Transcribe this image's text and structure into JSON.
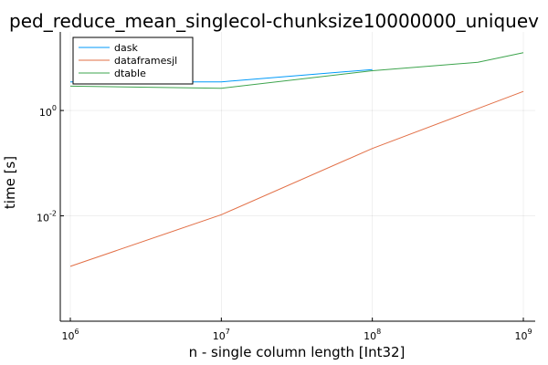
{
  "chart_data": {
    "type": "line",
    "title": "ped_reduce_mean_singlecol-chunksize10000000_uniquev",
    "xlabel": "n - single column length [Int32]",
    "ylabel": "time [s]",
    "xscale": "log",
    "yscale": "log",
    "xlim": [
      1000000,
      1000000000
    ],
    "ylim": [
      0.0001,
      31
    ],
    "grid": true,
    "legend_position": "top-left",
    "x_ticks": [
      {
        "value": 1000000,
        "base": "10",
        "exp": "6"
      },
      {
        "value": 10000000,
        "base": "10",
        "exp": "7"
      },
      {
        "value": 100000000,
        "base": "10",
        "exp": "8"
      },
      {
        "value": 1000000000,
        "base": "10",
        "exp": "9"
      }
    ],
    "y_ticks": [
      {
        "value": 0.01,
        "base": "10",
        "exp": "-2"
      },
      {
        "value": 1,
        "base": "10",
        "exp": "0"
      }
    ],
    "series": [
      {
        "name": "dask",
        "color": "#009af9",
        "x": [
          1000000,
          10000000,
          100000000
        ],
        "y": [
          3.5,
          3.5,
          6.0
        ]
      },
      {
        "name": "dataframesjl",
        "color": "#e26f46",
        "x": [
          1000000,
          10000000,
          100000000,
          1000000000
        ],
        "y": [
          0.0011,
          0.0105,
          0.19,
          2.3
        ]
      },
      {
        "name": "dtable",
        "color": "#3da44d",
        "x": [
          1000000,
          10000000,
          100000000,
          500000000,
          1000000000
        ],
        "y": [
          2.9,
          2.65,
          5.7,
          8.2,
          12.5
        ]
      }
    ]
  }
}
